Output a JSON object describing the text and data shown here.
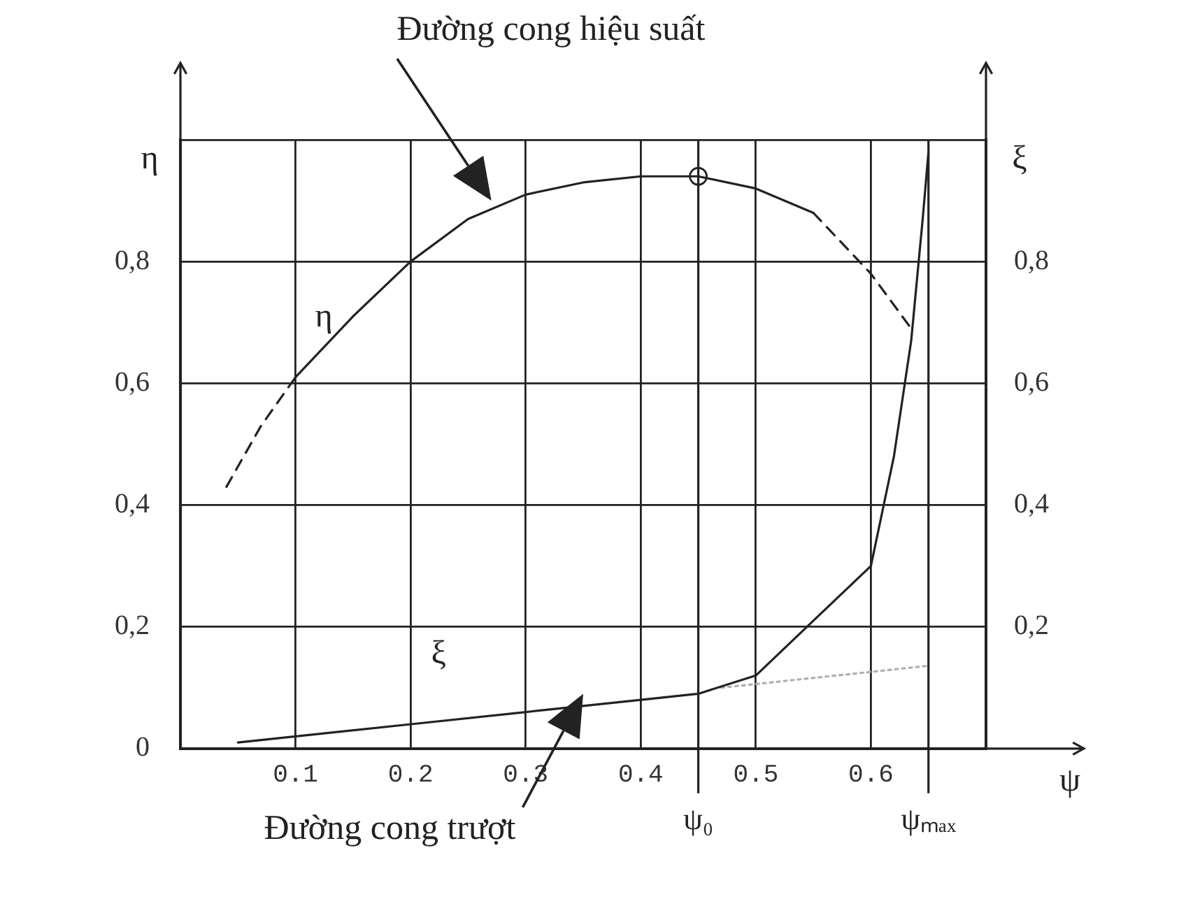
{
  "chart_data": {
    "type": "line",
    "xlabel": "ψ",
    "ylabel": "η",
    "y2label": "ξ",
    "xlim": [
      0,
      0.7
    ],
    "xticks": [
      0.1,
      0.2,
      0.3,
      0.4,
      0.5,
      0.6
    ],
    "ylim": [
      0,
      1
    ],
    "yticks": [
      {
        "value": 0,
        "label": "0"
      },
      {
        "value": 0.2,
        "label": "0,2"
      },
      {
        "value": 0.4,
        "label": "0,4"
      },
      {
        "value": 0.6,
        "label": "0,6"
      },
      {
        "value": 0.8,
        "label": "0,8"
      },
      {
        "value": 1,
        "label": null
      }
    ],
    "y2lim": [
      0,
      1
    ],
    "y2ticks": [
      {
        "value": 0.2,
        "label": "0,2"
      },
      {
        "value": 0.4,
        "label": "0,4"
      },
      {
        "value": 0.6,
        "label": "0,6"
      },
      {
        "value": 0.8,
        "label": "0,8"
      }
    ],
    "grid": true,
    "legend": false,
    "ref_lines": [
      {
        "axis": "x",
        "value": 0.45,
        "label": "ψ₀"
      },
      {
        "axis": "x",
        "value": 0.65,
        "label": "ψₘₐₓ"
      }
    ],
    "series": [
      {
        "color": "#222222",
        "line_style": "dashed",
        "marker": "none",
        "x": [
          0.04,
          0.07,
          0.1
        ],
        "values": [
          0.43,
          0.53,
          0.61
        ]
      },
      {
        "name": "η",
        "color": "#222222",
        "line_style": "solid",
        "marker": "none",
        "x": [
          0.1,
          0.15,
          0.2,
          0.25,
          0.3,
          0.35,
          0.4,
          0.45,
          0.5,
          0.55
        ],
        "values": [
          0.61,
          0.71,
          0.8,
          0.87,
          0.91,
          0.93,
          0.94,
          0.94,
          0.92,
          0.88
        ]
      },
      {
        "color": "#222222",
        "line_style": "dashed",
        "marker": "none",
        "x": [
          0.55,
          0.6,
          0.635
        ],
        "values": [
          0.88,
          0.78,
          0.69
        ]
      },
      {
        "type": "scatter",
        "color": "#222222",
        "marker": "circle",
        "x": [
          0.45
        ],
        "values": [
          0.94
        ]
      },
      {
        "name": "ξ",
        "color": "#222222",
        "line_style": "solid",
        "marker": "none",
        "x": [
          0.05,
          0.1,
          0.2,
          0.3,
          0.4,
          0.45,
          0.5,
          0.55,
          0.6,
          0.62,
          0.635,
          0.645,
          0.65
        ],
        "values": [
          0.01,
          0.02,
          0.04,
          0.06,
          0.08,
          0.09,
          0.12,
          0.21,
          0.3,
          0.48,
          0.67,
          0.87,
          0.98
        ]
      },
      {
        "color": "#b0b0b0",
        "line_style": "dotted",
        "marker": "none",
        "x": [
          0.47,
          0.65
        ],
        "values": [
          0.1,
          0.136
        ]
      }
    ],
    "annotations": [
      "Đường cong hiệu suất",
      "Đường cong trượt"
    ]
  }
}
